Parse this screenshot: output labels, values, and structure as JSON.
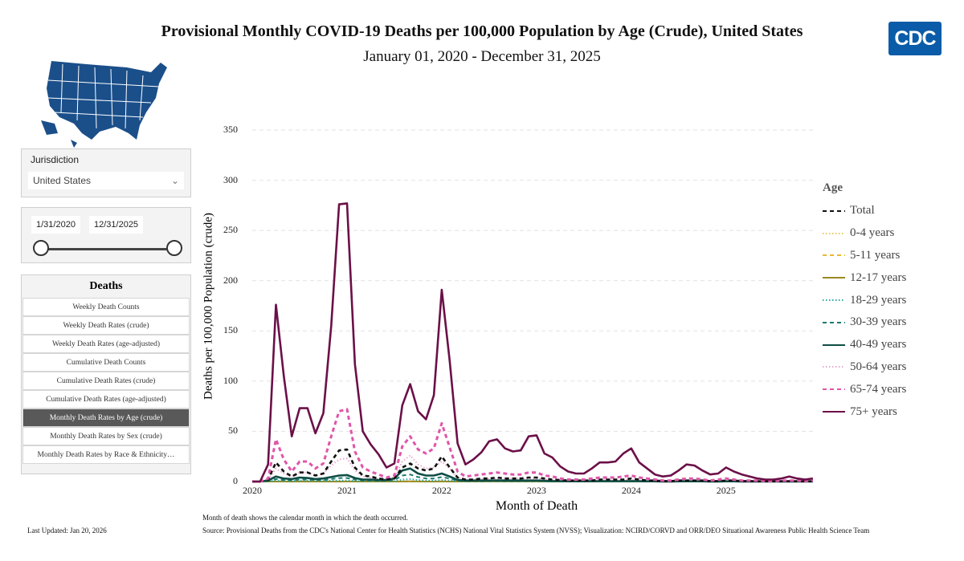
{
  "header": {
    "title": "Provisional Monthly COVID-19 Deaths per 100,000 Population by Age (Crude), United States",
    "subtitle": "January 01, 2020 - December 31, 2025",
    "logo": "CDC"
  },
  "filters": {
    "jurisdiction_label": "Jurisdiction",
    "jurisdiction_value": "United States",
    "start_date": "1/31/2020",
    "end_date": "12/31/2025"
  },
  "deaths_menu": {
    "title": "Deaths",
    "items": [
      "Weekly Death Counts",
      "Weekly Death Rates (crude)",
      "Weekly Death Rates (age-adjusted)",
      "Cumulative Death Counts",
      "Cumulative Death Rates (crude)",
      "Cumulative Death Rates (age-adjusted)",
      "Monthly Death Rates by Age (crude)",
      "Monthly Death Rates by Sex (crude)",
      "Monthly Death Rates by Race & Ethnicity…"
    ],
    "active_index": 6
  },
  "footer": {
    "note": "Month of death shows the calendar month in which the death occurred.",
    "source": "Source: Provisional Deaths from the CDC's National Center for Health Statistics (NCHS) National Vital Statistics System (NVSS); Visualization: NCIRD/CORVD and ORR/DEO Situational Awareness Public Health Science Team",
    "updated": "Last Updated: Jan 20, 2026"
  },
  "chart_data": {
    "type": "line",
    "xlabel": "Month of Death",
    "ylabel": "Deaths per 100,000 Population (crude)",
    "x_start": "2020-01",
    "x_end": "2025-12",
    "xticks": [
      "2020",
      "2021",
      "2022",
      "2023",
      "2024",
      "2025"
    ],
    "yticks": [
      "0",
      "50",
      "100",
      "150",
      "200",
      "250",
      "300",
      "350"
    ],
    "ylim": [
      0,
      350
    ],
    "grid": "horizontal dashed",
    "legend_title": "Age",
    "legend_position": "right",
    "series": [
      {
        "name": "Total",
        "color": "#111111",
        "style": "dashed",
        "values": [
          0,
          0,
          2,
          19,
          10,
          5,
          9,
          9,
          6,
          8,
          20,
          31,
          32,
          14,
          6,
          5,
          3,
          2,
          3,
          14,
          18,
          13,
          11,
          13,
          25,
          14,
          4,
          2,
          2,
          3,
          3,
          4,
          3,
          3,
          3,
          4,
          4,
          3,
          2,
          1.5,
          1,
          1,
          1,
          1,
          2,
          2,
          2,
          2,
          3,
          2,
          1,
          1,
          0.5,
          0.5,
          1,
          1,
          1,
          1,
          0.5,
          0.5,
          1,
          1,
          0.5,
          0.5,
          0.3,
          0.2,
          0.2,
          0.3,
          0.4,
          0.3,
          0.2,
          0.3
        ]
      },
      {
        "name": "0-4 years",
        "color": "#e8c85a",
        "style": "dotted",
        "values": [
          0,
          0,
          0,
          0,
          0,
          0,
          0,
          0,
          0,
          0,
          0,
          0,
          0,
          0,
          0,
          0,
          0,
          0,
          0,
          0.1,
          0.1,
          0.1,
          0.1,
          0.1,
          0.2,
          0.1,
          0,
          0,
          0,
          0,
          0,
          0,
          0,
          0,
          0,
          0,
          0,
          0,
          0,
          0,
          0,
          0,
          0,
          0,
          0,
          0,
          0,
          0,
          0,
          0,
          0,
          0,
          0,
          0,
          0,
          0,
          0,
          0,
          0,
          0,
          0,
          0,
          0,
          0,
          0,
          0,
          0,
          0,
          0,
          0,
          0,
          0
        ]
      },
      {
        "name": "5-11 years",
        "color": "#e8b830",
        "style": "dashed",
        "values": [
          0,
          0,
          0,
          0,
          0,
          0,
          0,
          0,
          0,
          0,
          0,
          0,
          0,
          0,
          0,
          0,
          0,
          0,
          0,
          0,
          0.1,
          0,
          0,
          0,
          0.1,
          0,
          0,
          0,
          0,
          0,
          0,
          0,
          0,
          0,
          0,
          0,
          0,
          0,
          0,
          0,
          0,
          0,
          0,
          0,
          0,
          0,
          0,
          0,
          0,
          0,
          0,
          0,
          0,
          0,
          0,
          0,
          0,
          0,
          0,
          0,
          0,
          0,
          0,
          0,
          0,
          0,
          0,
          0,
          0,
          0,
          0,
          0
        ]
      },
      {
        "name": "12-17 years",
        "color": "#9a8a20",
        "style": "solid",
        "values": [
          0,
          0,
          0,
          0,
          0,
          0,
          0,
          0,
          0,
          0,
          0,
          0,
          0.1,
          0,
          0,
          0,
          0,
          0,
          0,
          0.1,
          0.2,
          0.1,
          0,
          0,
          0.1,
          0,
          0,
          0,
          0,
          0,
          0,
          0,
          0,
          0,
          0,
          0,
          0,
          0,
          0,
          0,
          0,
          0,
          0,
          0,
          0,
          0,
          0,
          0,
          0,
          0,
          0,
          0,
          0,
          0,
          0,
          0,
          0,
          0,
          0,
          0,
          0,
          0,
          0,
          0,
          0,
          0,
          0,
          0,
          0,
          0,
          0,
          0
        ]
      },
      {
        "name": "18-29 years",
        "color": "#2aa8a8",
        "style": "dotted",
        "values": [
          0,
          0,
          0.2,
          1,
          0.6,
          0.5,
          1,
          1,
          0.6,
          0.5,
          0.8,
          1,
          1,
          0.6,
          0.4,
          0.4,
          0.3,
          0.3,
          0.5,
          2,
          2.5,
          1.5,
          1,
          1,
          1.5,
          1,
          0.3,
          0.2,
          0.2,
          0.2,
          0.2,
          0.2,
          0.2,
          0.2,
          0.2,
          0.2,
          0.2,
          0.1,
          0.1,
          0.1,
          0.1,
          0.1,
          0.1,
          0.1,
          0.1,
          0.1,
          0.1,
          0.1,
          0.1,
          0.1,
          0.1,
          0,
          0,
          0,
          0,
          0,
          0,
          0,
          0,
          0,
          0,
          0,
          0,
          0,
          0,
          0,
          0,
          0,
          0,
          0,
          0,
          0
        ]
      },
      {
        "name": "30-39 years",
        "color": "#1a7a6e",
        "style": "dashed",
        "values": [
          0,
          0,
          0.5,
          2.5,
          1.5,
          1.2,
          2,
          2,
          1.5,
          1.5,
          2.5,
          3.5,
          3.5,
          2,
          1,
          1,
          0.8,
          0.8,
          1.5,
          6,
          7,
          4.5,
          3,
          3,
          4.5,
          3,
          0.8,
          0.5,
          0.5,
          0.5,
          0.6,
          0.6,
          0.5,
          0.5,
          0.5,
          0.5,
          0.5,
          0.4,
          0.3,
          0.2,
          0.2,
          0.2,
          0.2,
          0.2,
          0.2,
          0.2,
          0.2,
          0.2,
          0.3,
          0.2,
          0.1,
          0.1,
          0.1,
          0.1,
          0.1,
          0.1,
          0.1,
          0.1,
          0.1,
          0.1,
          0.1,
          0.1,
          0.1,
          0,
          0,
          0,
          0,
          0,
          0,
          0,
          0,
          0
        ]
      },
      {
        "name": "40-49 years",
        "color": "#0f4d45",
        "style": "solid",
        "values": [
          0,
          0,
          1,
          5,
          3,
          2.5,
          4,
          3.5,
          2.5,
          3,
          4.5,
          6,
          6.5,
          3.5,
          2,
          2,
          1.5,
          1.5,
          3,
          11,
          13,
          8,
          6,
          6,
          8,
          5,
          1.5,
          1,
          1,
          1,
          1,
          1.2,
          1,
          1,
          1,
          1,
          1,
          0.7,
          0.5,
          0.4,
          0.3,
          0.3,
          0.3,
          0.3,
          0.4,
          0.4,
          0.4,
          0.4,
          0.5,
          0.4,
          0.2,
          0.2,
          0.1,
          0.1,
          0.2,
          0.2,
          0.2,
          0.2,
          0.1,
          0.1,
          0.2,
          0.2,
          0.1,
          0.1,
          0.1,
          0.1,
          0.1,
          0.1,
          0.1,
          0.1,
          0.1,
          0.1
        ]
      },
      {
        "name": "50-64 years",
        "color": "#e8a8d0",
        "style": "dotted",
        "values": [
          0,
          0,
          2,
          13,
          8,
          5,
          9,
          9,
          6,
          8,
          16,
          22,
          23,
          11,
          5,
          4,
          3,
          2.5,
          4,
          20,
          26,
          17,
          13,
          14,
          20,
          13,
          4,
          2,
          2,
          2.5,
          3,
          3,
          3,
          3,
          3,
          3,
          3,
          2,
          1.5,
          1,
          1,
          1,
          1,
          1,
          1.5,
          1.5,
          1.5,
          1.5,
          2,
          1.5,
          1,
          0.8,
          0.5,
          0.5,
          0.8,
          1,
          1,
          0.8,
          0.5,
          0.5,
          0.8,
          0.6,
          0.4,
          0.3,
          0.3,
          0.2,
          0.2,
          0.3,
          0.3,
          0.3,
          0.2,
          0.3
        ]
      },
      {
        "name": "65-74 years",
        "color": "#e055a8",
        "style": "dashed",
        "values": [
          0,
          0,
          3,
          42,
          22,
          10,
          20,
          20,
          13,
          18,
          45,
          70,
          72,
          30,
          14,
          10,
          7,
          4,
          6,
          35,
          45,
          32,
          28,
          33,
          58,
          34,
          10,
          5,
          6,
          7,
          8,
          9,
          8,
          7,
          7,
          9,
          9,
          6,
          5,
          3,
          2,
          2,
          2,
          3,
          4,
          4,
          4,
          5,
          6,
          4,
          3,
          2,
          1,
          1,
          2,
          3,
          3,
          2,
          1,
          2,
          3,
          2,
          1,
          1,
          1,
          0.5,
          0.5,
          1,
          1,
          1,
          0.5,
          1
        ]
      },
      {
        "name": "75+ years",
        "color": "#6b1048",
        "style": "solid",
        "values": [
          0,
          0,
          17,
          176,
          105,
          45,
          73,
          73,
          48,
          68,
          155,
          276,
          277,
          117,
          50,
          37,
          27,
          14,
          18,
          76,
          97,
          70,
          62,
          86,
          191,
          120,
          38,
          17,
          22,
          29,
          40,
          42,
          33,
          30,
          31,
          45,
          46,
          28,
          24,
          15,
          10,
          8,
          8,
          13,
          19,
          19,
          20,
          28,
          33,
          19,
          13,
          7,
          5,
          6,
          11,
          17,
          16,
          11,
          7,
          8,
          14,
          10,
          7,
          5,
          3,
          2,
          2,
          3,
          5,
          3,
          2,
          3
        ]
      }
    ]
  }
}
